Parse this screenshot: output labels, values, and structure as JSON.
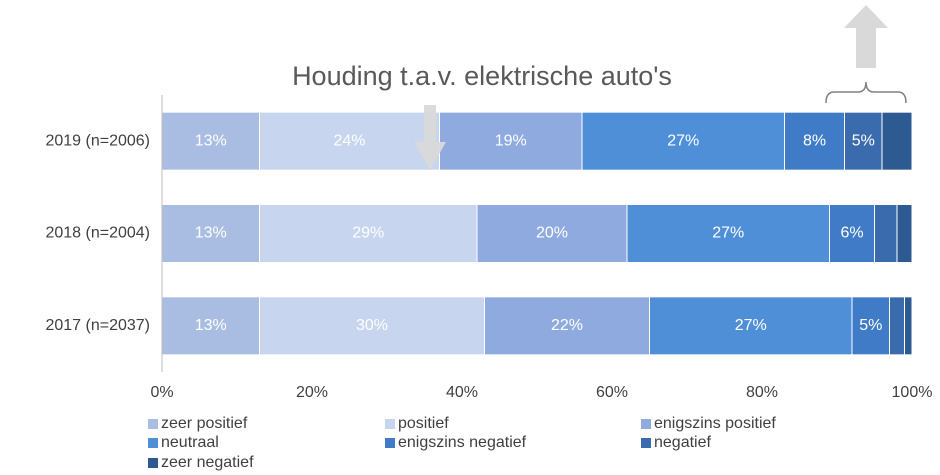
{
  "chart_data": {
    "type": "stacked-bar-horizontal",
    "title": "Houding t.a.v. elektrische auto's",
    "categories": [
      "2019 (n=2006)",
      "2018 (n=2004)",
      "2017 (n=2037)"
    ],
    "series": [
      {
        "name": "zeer positief",
        "color": "#a9bde3",
        "values": [
          13,
          13,
          13
        ],
        "value_labels": [
          "13%",
          "13%",
          "13%"
        ]
      },
      {
        "name": "positief",
        "color": "#c7d5ee",
        "values": [
          24,
          29,
          30
        ],
        "value_labels": [
          "24%",
          "29%",
          "30%"
        ]
      },
      {
        "name": "enigszins positief",
        "color": "#8eaadf",
        "values": [
          19,
          20,
          22
        ],
        "value_labels": [
          "19%",
          "20%",
          "22%"
        ]
      },
      {
        "name": "neutraal",
        "color": "#4f8fd8",
        "values": [
          27,
          27,
          27
        ],
        "value_labels": [
          "27%",
          "27%",
          "27%"
        ]
      },
      {
        "name": "enigszins negatief",
        "color": "#3f7bc6",
        "values": [
          8,
          6,
          5
        ],
        "value_labels": [
          "8%",
          "6%",
          "5%"
        ]
      },
      {
        "name": "negatief",
        "color": "#3a6cad",
        "values": [
          5,
          3,
          2
        ],
        "value_labels": [
          "5%",
          null,
          null
        ]
      },
      {
        "name": "zeer negatief",
        "color": "#2e5a92",
        "values": [
          4,
          2,
          1
        ],
        "value_labels": [
          null,
          null,
          null
        ]
      }
    ],
    "xlim": [
      0,
      100
    ],
    "xticks": [
      {
        "value": 0,
        "label": "0%"
      },
      {
        "value": 20,
        "label": "20%"
      },
      {
        "value": 40,
        "label": "40%"
      },
      {
        "value": 60,
        "label": "60%"
      },
      {
        "value": 80,
        "label": "80%"
      },
      {
        "value": 100,
        "label": "100%"
      }
    ],
    "grid": false,
    "legend": "bottom"
  }
}
